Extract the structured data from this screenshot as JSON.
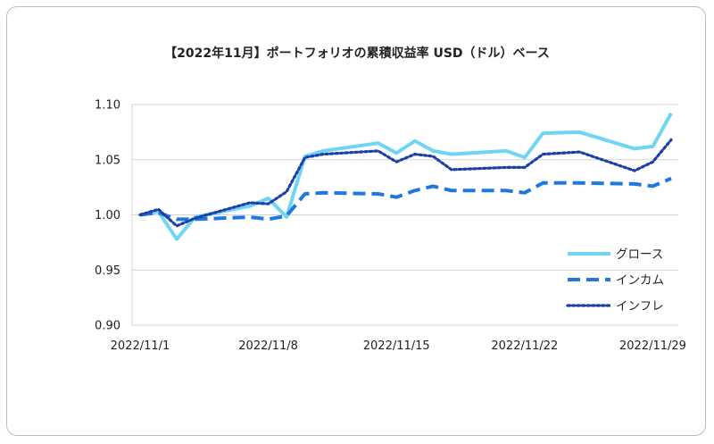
{
  "chart_data": {
    "type": "line",
    "title": "【2022年11月】ポートフォリオの累積収益率 USD（ドル）ベース",
    "xlabel": "",
    "ylabel": "",
    "ylim": [
      0.9,
      1.1
    ],
    "yticks": [
      "1.10",
      "1.05",
      "1.00",
      "0.95",
      "0.90"
    ],
    "xlim": [
      "2022-11-01",
      "2022-11-30"
    ],
    "xticks": [
      "2022/11/1",
      "2022/11/8",
      "2022/11/15",
      "2022/11/22",
      "2022/11/29"
    ],
    "grid": "horizontal",
    "legend": "right",
    "dates": [
      "2022-11-01",
      "2022-11-02",
      "2022-11-03",
      "2022-11-04",
      "2022-11-07",
      "2022-11-08",
      "2022-11-09",
      "2022-11-10",
      "2022-11-11",
      "2022-11-14",
      "2022-11-15",
      "2022-11-16",
      "2022-11-17",
      "2022-11-18",
      "2022-11-21",
      "2022-11-22",
      "2022-11-23",
      "2022-11-25",
      "2022-11-28",
      "2022-11-29",
      "2022-11-30"
    ],
    "series": [
      {
        "name": "グロース",
        "color": "#6fd5f5",
        "style": "solid",
        "values": [
          1.0,
          1.003,
          0.978,
          0.998,
          1.008,
          1.015,
          0.998,
          1.053,
          1.058,
          1.065,
          1.056,
          1.067,
          1.058,
          1.055,
          1.058,
          1.052,
          1.074,
          1.075,
          1.06,
          1.062,
          1.092
        ]
      },
      {
        "name": "インカム",
        "color": "#1f78e0",
        "style": "dashed",
        "values": [
          1.0,
          1.002,
          0.996,
          0.996,
          0.998,
          0.996,
          0.999,
          1.019,
          1.02,
          1.019,
          1.016,
          1.022,
          1.026,
          1.022,
          1.022,
          1.02,
          1.029,
          1.029,
          1.028,
          1.026,
          1.033
        ]
      },
      {
        "name": "インフレ",
        "color": "#1d3fa8",
        "style": "dotted",
        "values": [
          1.0,
          1.005,
          0.99,
          0.997,
          1.011,
          1.01,
          1.021,
          1.052,
          1.055,
          1.058,
          1.048,
          1.055,
          1.053,
          1.041,
          1.043,
          1.043,
          1.055,
          1.057,
          1.04,
          1.048,
          1.068
        ]
      }
    ]
  }
}
